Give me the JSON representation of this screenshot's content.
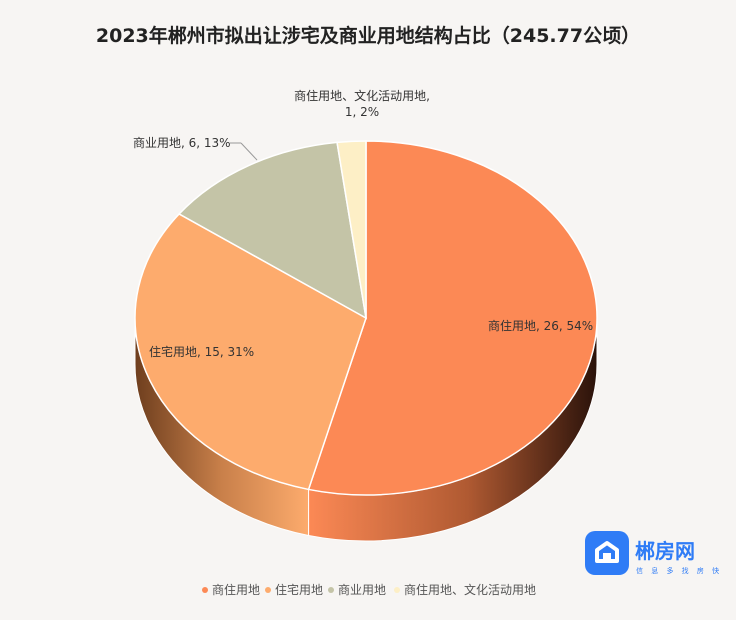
{
  "chart_data": {
    "type": "pie",
    "title": "2023年郴州市拟出让涉宅及商业用地结构占比（245.77公顷）",
    "slices": [
      {
        "name": "商住用地",
        "value": 26,
        "percent": 54,
        "color": "#fc8955",
        "label": "商住用地, 26, 54%"
      },
      {
        "name": "住宅用地",
        "value": 15,
        "percent": 31,
        "color": "#fdab6d",
        "label": "住宅用地, 15, 31%"
      },
      {
        "name": "商业用地",
        "value": 6,
        "percent": 13,
        "color": "#c4c4a7",
        "label": "商业用地, 6, 13%"
      },
      {
        "name": "商住用地、文化活动用地",
        "value": 1,
        "percent": 2,
        "color": "#fdefc6",
        "label_line1": "商住用地、文化活动用地,",
        "label_line2": "1, 2%"
      }
    ],
    "legend": [
      "商住用地",
      "住宅用地",
      "商业用地",
      "商住用地、文化活动用地"
    ],
    "legend_position": "bottom"
  },
  "watermark": {
    "text": "郴房网",
    "subtitle": "信 息 多 找 房 快",
    "color": "#2f7cf6"
  }
}
